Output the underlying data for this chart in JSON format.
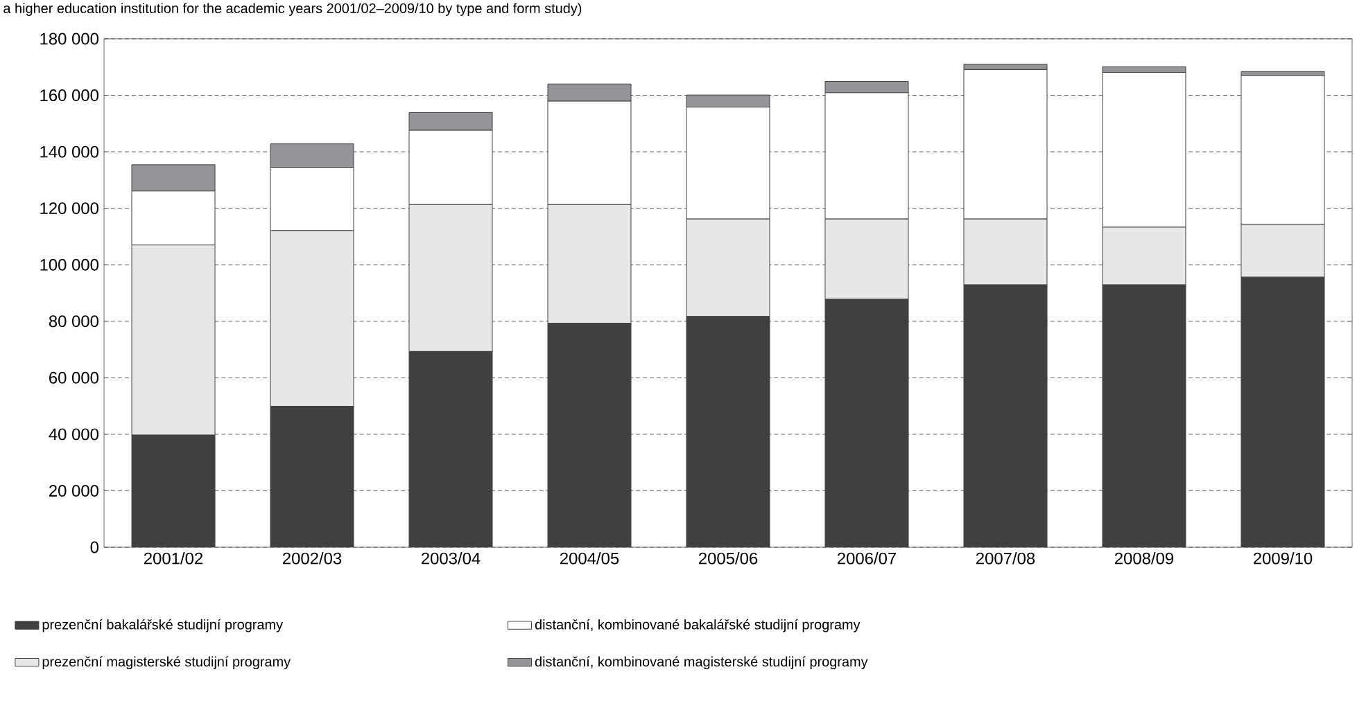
{
  "chart_data": {
    "type": "bar",
    "stacked": true,
    "title": "a higher education institution for the academic years 2001/02–2009/10 by type and form study)",
    "categories": [
      "2001/02",
      "2002/03",
      "2003/04",
      "2004/05",
      "2005/06",
      "2006/07",
      "2007/08",
      "2008/09",
      "2009/10"
    ],
    "series": [
      {
        "name": "prezenční bakalářské studijní programy",
        "color": "#404040",
        "values": [
          39700,
          49900,
          69300,
          79300,
          81700,
          87800,
          92900,
          92900,
          95600
        ]
      },
      {
        "name": "prezenční magisterské studijní programy",
        "color": "#e6e7e8",
        "values": [
          67300,
          62200,
          52000,
          42000,
          34500,
          28400,
          23300,
          20400,
          18700
        ]
      },
      {
        "name": "distanční, kombinované bakalářské studijní programy",
        "color": "#ffffff",
        "values": [
          19100,
          22400,
          26300,
          36600,
          39600,
          44700,
          52900,
          54800,
          52700
        ]
      },
      {
        "name": "distanční, kombinované magisterské studijní programy",
        "color": "#939598",
        "values": [
          9300,
          8300,
          6300,
          6100,
          4300,
          4000,
          1900,
          2000,
          1400
        ]
      }
    ],
    "ylim": [
      0,
      180000
    ],
    "yticks": [
      {
        "value": 0,
        "label": "0"
      },
      {
        "value": 20000,
        "label": "20 000"
      },
      {
        "value": 40000,
        "label": "40 000"
      },
      {
        "value": 60000,
        "label": "60 000"
      },
      {
        "value": 80000,
        "label": "80 000"
      },
      {
        "value": 100000,
        "label": "100 000"
      },
      {
        "value": 120000,
        "label": "120 000"
      },
      {
        "value": 140000,
        "label": "140 000"
      },
      {
        "value": 160000,
        "label": "160 000"
      },
      {
        "value": 180000,
        "label": "180 000"
      }
    ],
    "grid": "y",
    "legend": "bottom"
  }
}
